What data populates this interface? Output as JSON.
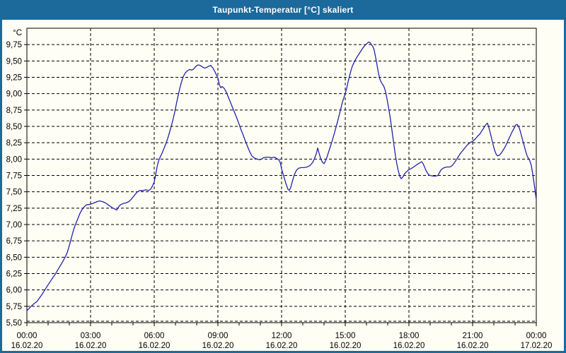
{
  "window": {
    "title": "Taupunkt-Temperatur [°C] skaliert"
  },
  "colors": {
    "titlebar_bg": "#1C699C",
    "window_border": "#1C699C",
    "content_bg": "#FEFEF4",
    "plot_border": "#000000",
    "gridline": "#000000",
    "tick": "#000000",
    "label_text": "#000000",
    "title_text": "#FFFFFF",
    "line": "#2222AE"
  },
  "chart_data": {
    "type": "line",
    "title": "Taupunkt-Temperatur [°C] skaliert",
    "ylabel": "°C",
    "xlabel": "",
    "grid": "dashed",
    "legend": "none",
    "ylim": [
      5.5,
      10.0
    ],
    "x_total_minutes": 1440,
    "minor_tick_every_minutes": 60,
    "yticks": [
      {
        "v": 5.5,
        "label": "5,50"
      },
      {
        "v": 5.75,
        "label": "5,75"
      },
      {
        "v": 6.0,
        "label": "6,00"
      },
      {
        "v": 6.25,
        "label": "6,25"
      },
      {
        "v": 6.5,
        "label": "6,50"
      },
      {
        "v": 6.75,
        "label": "6,75"
      },
      {
        "v": 7.0,
        "label": "7,00"
      },
      {
        "v": 7.25,
        "label": "7,25"
      },
      {
        "v": 7.5,
        "label": "7,50"
      },
      {
        "v": 7.75,
        "label": "7,75"
      },
      {
        "v": 8.0,
        "label": "8,00"
      },
      {
        "v": 8.25,
        "label": "8,25"
      },
      {
        "v": 8.5,
        "label": "8,50"
      },
      {
        "v": 8.75,
        "label": "8,75"
      },
      {
        "v": 9.0,
        "label": "9,00"
      },
      {
        "v": 9.25,
        "label": "9,25"
      },
      {
        "v": 9.5,
        "label": "9,50"
      },
      {
        "v": 9.75,
        "label": "9,75"
      }
    ],
    "xticks": [
      {
        "minutes": 0,
        "time": "00:00",
        "date": "16.02.20"
      },
      {
        "minutes": 180,
        "time": "03:00",
        "date": "16.02.20"
      },
      {
        "minutes": 360,
        "time": "06:00",
        "date": "16.02.20"
      },
      {
        "minutes": 540,
        "time": "09:00",
        "date": "16.02.20"
      },
      {
        "minutes": 720,
        "time": "12:00",
        "date": "16.02.20"
      },
      {
        "minutes": 900,
        "time": "15:00",
        "date": "16.02.20"
      },
      {
        "minutes": 1080,
        "time": "18:00",
        "date": "16.02.20"
      },
      {
        "minutes": 1260,
        "time": "21:00",
        "date": "16.02.20"
      },
      {
        "minutes": 1440,
        "time": "00:00",
        "date": "17.02.20"
      }
    ],
    "series": [
      {
        "name": "Taupunkt-Temperatur",
        "color": "#2222AE",
        "points": [
          [
            0,
            5.68
          ],
          [
            10,
            5.74
          ],
          [
            20,
            5.79
          ],
          [
            28,
            5.82
          ],
          [
            36,
            5.88
          ],
          [
            44,
            5.94
          ],
          [
            52,
            6.01
          ],
          [
            60,
            6.08
          ],
          [
            70,
            6.16
          ],
          [
            80,
            6.24
          ],
          [
            90,
            6.33
          ],
          [
            100,
            6.42
          ],
          [
            108,
            6.5
          ],
          [
            114,
            6.57
          ],
          [
            120,
            6.68
          ],
          [
            126,
            6.8
          ],
          [
            132,
            6.92
          ],
          [
            138,
            7.01
          ],
          [
            144,
            7.09
          ],
          [
            150,
            7.17
          ],
          [
            156,
            7.23
          ],
          [
            162,
            7.27
          ],
          [
            168,
            7.3
          ],
          [
            180,
            7.31
          ],
          [
            190,
            7.33
          ],
          [
            198,
            7.35
          ],
          [
            206,
            7.36
          ],
          [
            214,
            7.35
          ],
          [
            222,
            7.33
          ],
          [
            230,
            7.3
          ],
          [
            240,
            7.26
          ],
          [
            248,
            7.24
          ],
          [
            254,
            7.22
          ],
          [
            258,
            7.26
          ],
          [
            264,
            7.3
          ],
          [
            272,
            7.32
          ],
          [
            280,
            7.33
          ],
          [
            288,
            7.35
          ],
          [
            294,
            7.38
          ],
          [
            300,
            7.42
          ],
          [
            306,
            7.46
          ],
          [
            312,
            7.5
          ],
          [
            320,
            7.52
          ],
          [
            330,
            7.52
          ],
          [
            336,
            7.53
          ],
          [
            344,
            7.52
          ],
          [
            350,
            7.54
          ],
          [
            356,
            7.6
          ],
          [
            360,
            7.65
          ],
          [
            364,
            7.76
          ],
          [
            368,
            7.88
          ],
          [
            372,
            7.97
          ],
          [
            376,
            8.02
          ],
          [
            382,
            8.09
          ],
          [
            388,
            8.17
          ],
          [
            394,
            8.25
          ],
          [
            400,
            8.35
          ],
          [
            406,
            8.46
          ],
          [
            412,
            8.58
          ],
          [
            418,
            8.72
          ],
          [
            424,
            8.88
          ],
          [
            430,
            9.03
          ],
          [
            436,
            9.16
          ],
          [
            442,
            9.26
          ],
          [
            448,
            9.32
          ],
          [
            454,
            9.35
          ],
          [
            460,
            9.37
          ],
          [
            466,
            9.36
          ],
          [
            472,
            9.38
          ],
          [
            478,
            9.42
          ],
          [
            484,
            9.44
          ],
          [
            490,
            9.43
          ],
          [
            496,
            9.41
          ],
          [
            502,
            9.39
          ],
          [
            508,
            9.4
          ],
          [
            514,
            9.42
          ],
          [
            520,
            9.43
          ],
          [
            526,
            9.39
          ],
          [
            532,
            9.33
          ],
          [
            540,
            9.24
          ],
          [
            544,
            9.14
          ],
          [
            548,
            9.09
          ],
          [
            552,
            9.11
          ],
          [
            558,
            9.08
          ],
          [
            564,
            9.02
          ],
          [
            570,
            8.94
          ],
          [
            576,
            8.86
          ],
          [
            582,
            8.78
          ],
          [
            588,
            8.7
          ],
          [
            594,
            8.62
          ],
          [
            600,
            8.53
          ],
          [
            606,
            8.44
          ],
          [
            612,
            8.36
          ],
          [
            618,
            8.27
          ],
          [
            624,
            8.19
          ],
          [
            630,
            8.11
          ],
          [
            636,
            8.05
          ],
          [
            642,
            8.02
          ],
          [
            650,
            8.0
          ],
          [
            658,
            7.99
          ],
          [
            664,
            8.0
          ],
          [
            668,
            8.02
          ],
          [
            676,
            8.03
          ],
          [
            684,
            8.03
          ],
          [
            692,
            8.02
          ],
          [
            700,
            8.03
          ],
          [
            706,
            8.01
          ],
          [
            712,
            7.99
          ],
          [
            716,
            7.95
          ],
          [
            720,
            7.85
          ],
          [
            726,
            7.74
          ],
          [
            732,
            7.63
          ],
          [
            738,
            7.54
          ],
          [
            742,
            7.52
          ],
          [
            746,
            7.57
          ],
          [
            750,
            7.65
          ],
          [
            756,
            7.76
          ],
          [
            762,
            7.83
          ],
          [
            768,
            7.86
          ],
          [
            776,
            7.87
          ],
          [
            784,
            7.87
          ],
          [
            792,
            7.88
          ],
          [
            800,
            7.9
          ],
          [
            808,
            7.95
          ],
          [
            814,
            8.02
          ],
          [
            819,
            8.1
          ],
          [
            822,
            8.17
          ],
          [
            826,
            8.09
          ],
          [
            831,
            8.0
          ],
          [
            836,
            7.95
          ],
          [
            840,
            7.93
          ],
          [
            845,
            7.98
          ],
          [
            850,
            8.06
          ],
          [
            856,
            8.16
          ],
          [
            862,
            8.26
          ],
          [
            868,
            8.37
          ],
          [
            874,
            8.49
          ],
          [
            880,
            8.61
          ],
          [
            886,
            8.74
          ],
          [
            892,
            8.87
          ],
          [
            898,
            8.97
          ],
          [
            904,
            9.08
          ],
          [
            908,
            9.18
          ],
          [
            912,
            9.27
          ],
          [
            916,
            9.35
          ],
          [
            920,
            9.42
          ],
          [
            926,
            9.49
          ],
          [
            932,
            9.55
          ],
          [
            938,
            9.6
          ],
          [
            944,
            9.65
          ],
          [
            950,
            9.7
          ],
          [
            956,
            9.74
          ],
          [
            962,
            9.77
          ],
          [
            966,
            9.79
          ],
          [
            970,
            9.78
          ],
          [
            974,
            9.75
          ],
          [
            978,
            9.72
          ],
          [
            982,
            9.66
          ],
          [
            986,
            9.55
          ],
          [
            990,
            9.43
          ],
          [
            994,
            9.31
          ],
          [
            998,
            9.22
          ],
          [
            1002,
            9.17
          ],
          [
            1006,
            9.14
          ],
          [
            1010,
            9.1
          ],
          [
            1014,
            9.03
          ],
          [
            1018,
            8.92
          ],
          [
            1022,
            8.8
          ],
          [
            1026,
            8.67
          ],
          [
            1030,
            8.52
          ],
          [
            1034,
            8.36
          ],
          [
            1038,
            8.2
          ],
          [
            1042,
            8.05
          ],
          [
            1046,
            7.92
          ],
          [
            1050,
            7.82
          ],
          [
            1054,
            7.74
          ],
          [
            1058,
            7.7
          ],
          [
            1062,
            7.72
          ],
          [
            1066,
            7.76
          ],
          [
            1070,
            7.79
          ],
          [
            1076,
            7.82
          ],
          [
            1080,
            7.84
          ],
          [
            1088,
            7.86
          ],
          [
            1096,
            7.89
          ],
          [
            1104,
            7.92
          ],
          [
            1110,
            7.94
          ],
          [
            1116,
            7.96
          ],
          [
            1120,
            7.93
          ],
          [
            1124,
            7.88
          ],
          [
            1128,
            7.83
          ],
          [
            1132,
            7.79
          ],
          [
            1136,
            7.76
          ],
          [
            1140,
            7.75
          ],
          [
            1148,
            7.74
          ],
          [
            1156,
            7.74
          ],
          [
            1162,
            7.75
          ],
          [
            1166,
            7.79
          ],
          [
            1170,
            7.83
          ],
          [
            1174,
            7.85
          ],
          [
            1180,
            7.87
          ],
          [
            1188,
            7.88
          ],
          [
            1196,
            7.88
          ],
          [
            1202,
            7.9
          ],
          [
            1208,
            7.94
          ],
          [
            1214,
            7.99
          ],
          [
            1220,
            8.04
          ],
          [
            1226,
            8.09
          ],
          [
            1232,
            8.13
          ],
          [
            1238,
            8.17
          ],
          [
            1244,
            8.21
          ],
          [
            1250,
            8.24
          ],
          [
            1256,
            8.26
          ],
          [
            1262,
            8.28
          ],
          [
            1268,
            8.31
          ],
          [
            1274,
            8.35
          ],
          [
            1280,
            8.38
          ],
          [
            1286,
            8.43
          ],
          [
            1292,
            8.48
          ],
          [
            1298,
            8.53
          ],
          [
            1302,
            8.55
          ],
          [
            1306,
            8.48
          ],
          [
            1310,
            8.4
          ],
          [
            1314,
            8.31
          ],
          [
            1318,
            8.22
          ],
          [
            1322,
            8.14
          ],
          [
            1326,
            8.08
          ],
          [
            1330,
            8.05
          ],
          [
            1336,
            8.06
          ],
          [
            1342,
            8.1
          ],
          [
            1348,
            8.15
          ],
          [
            1354,
            8.21
          ],
          [
            1360,
            8.28
          ],
          [
            1366,
            8.35
          ],
          [
            1372,
            8.42
          ],
          [
            1378,
            8.48
          ],
          [
            1382,
            8.52
          ],
          [
            1386,
            8.53
          ],
          [
            1390,
            8.5
          ],
          [
            1394,
            8.44
          ],
          [
            1398,
            8.36
          ],
          [
            1402,
            8.28
          ],
          [
            1406,
            8.2
          ],
          [
            1410,
            8.12
          ],
          [
            1414,
            8.05
          ],
          [
            1418,
            8.01
          ],
          [
            1422,
            7.97
          ],
          [
            1426,
            7.9
          ],
          [
            1430,
            7.77
          ],
          [
            1434,
            7.62
          ],
          [
            1437,
            7.5
          ],
          [
            1440,
            7.38
          ]
        ]
      }
    ]
  }
}
